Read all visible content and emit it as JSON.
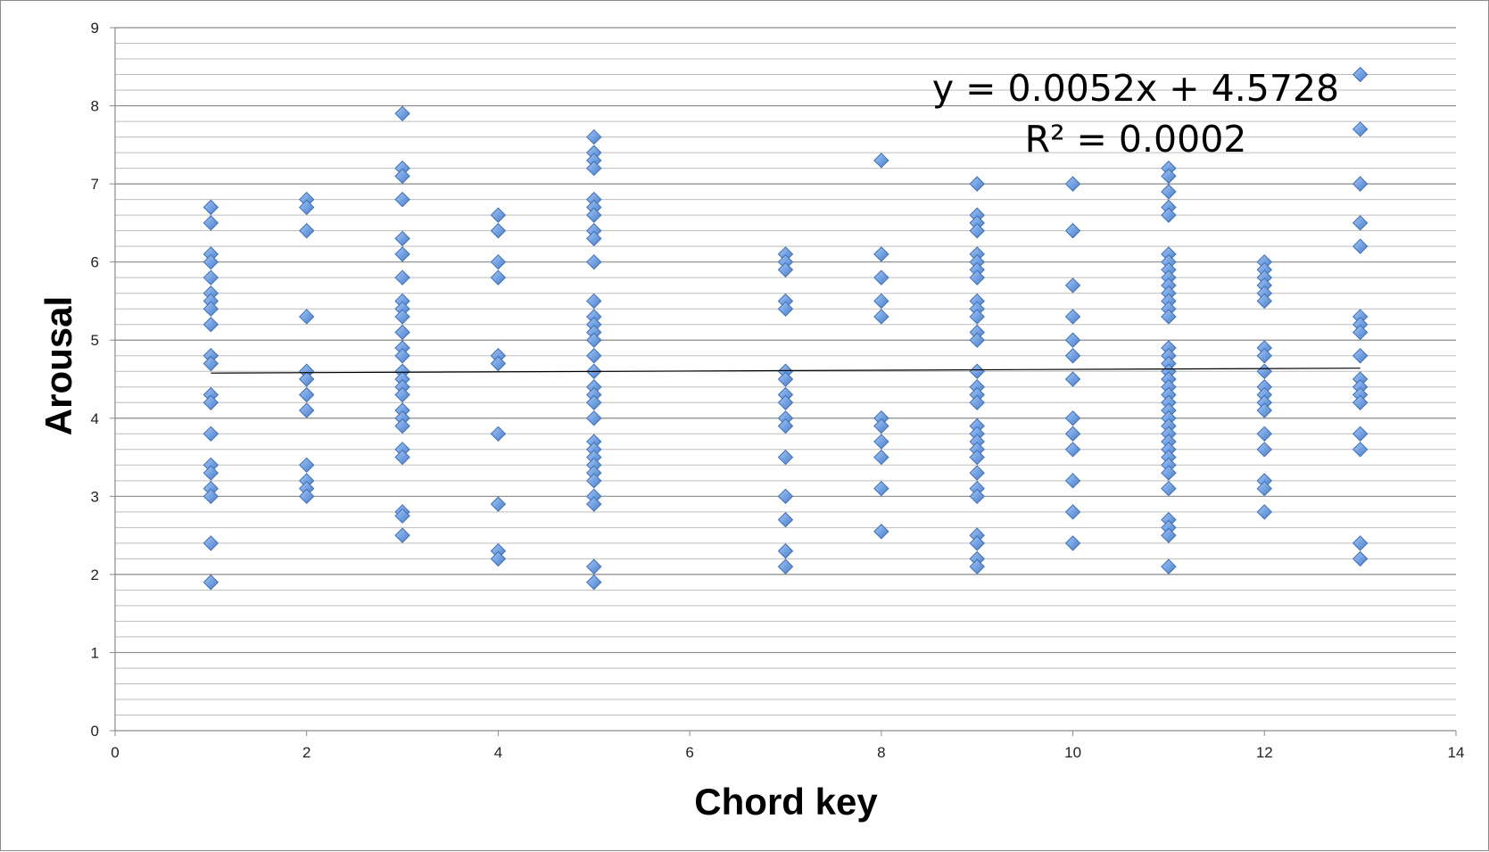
{
  "chart_data": {
    "type": "scatter",
    "title": "",
    "xlabel": "Chord key",
    "ylabel": "Arousal",
    "xlim": [
      0,
      14
    ],
    "ylim": [
      0,
      9
    ],
    "x_ticks": [
      "0",
      "2",
      "4",
      "6",
      "8",
      "10",
      "12",
      "14"
    ],
    "y_ticks": [
      "0",
      "1",
      "2",
      "3",
      "4",
      "5",
      "6",
      "7",
      "8",
      "9"
    ],
    "grid": "horizontal",
    "marker": "diamond",
    "marker_color": "#6f9ee0",
    "trendline": {
      "type": "linear",
      "slope": 0.0052,
      "intercept": 4.5728,
      "x_range": [
        1,
        13
      ],
      "equation_label": "y = 0.0052x + 4.5728",
      "r2_label": "R² = 0.0002"
    },
    "points": [
      [
        1,
        6.7
      ],
      [
        1,
        6.5
      ],
      [
        1,
        6.1
      ],
      [
        1,
        6.0
      ],
      [
        1,
        5.8
      ],
      [
        1,
        5.6
      ],
      [
        1,
        5.5
      ],
      [
        1,
        5.4
      ],
      [
        1,
        5.2
      ],
      [
        1,
        4.8
      ],
      [
        1,
        4.7
      ],
      [
        1,
        4.3
      ],
      [
        1,
        4.2
      ],
      [
        1,
        3.8
      ],
      [
        1,
        3.4
      ],
      [
        1,
        3.3
      ],
      [
        1,
        3.1
      ],
      [
        1,
        3.0
      ],
      [
        1,
        2.4
      ],
      [
        1,
        1.9
      ],
      [
        2,
        6.8
      ],
      [
        2,
        6.7
      ],
      [
        2,
        6.4
      ],
      [
        2,
        5.3
      ],
      [
        2,
        4.6
      ],
      [
        2,
        4.5
      ],
      [
        2,
        4.3
      ],
      [
        2,
        4.1
      ],
      [
        2,
        3.4
      ],
      [
        2,
        3.2
      ],
      [
        2,
        3.1
      ],
      [
        2,
        3.0
      ],
      [
        3,
        7.9
      ],
      [
        3,
        7.2
      ],
      [
        3,
        7.1
      ],
      [
        3,
        6.8
      ],
      [
        3,
        6.3
      ],
      [
        3,
        6.1
      ],
      [
        3,
        5.8
      ],
      [
        3,
        5.5
      ],
      [
        3,
        5.4
      ],
      [
        3,
        5.3
      ],
      [
        3,
        5.1
      ],
      [
        3,
        4.9
      ],
      [
        3,
        4.8
      ],
      [
        3,
        4.6
      ],
      [
        3,
        4.5
      ],
      [
        3,
        4.4
      ],
      [
        3,
        4.3
      ],
      [
        3,
        4.1
      ],
      [
        3,
        4.0
      ],
      [
        3,
        3.9
      ],
      [
        3,
        3.6
      ],
      [
        3,
        3.5
      ],
      [
        3,
        2.8
      ],
      [
        3,
        2.75
      ],
      [
        3,
        2.5
      ],
      [
        4,
        6.6
      ],
      [
        4,
        6.4
      ],
      [
        4,
        6.0
      ],
      [
        4,
        5.8
      ],
      [
        4,
        4.8
      ],
      [
        4,
        4.7
      ],
      [
        4,
        3.8
      ],
      [
        4,
        2.9
      ],
      [
        4,
        2.3
      ],
      [
        4,
        2.2
      ],
      [
        5,
        7.6
      ],
      [
        5,
        7.4
      ],
      [
        5,
        7.3
      ],
      [
        5,
        7.2
      ],
      [
        5,
        6.8
      ],
      [
        5,
        6.7
      ],
      [
        5,
        6.6
      ],
      [
        5,
        6.4
      ],
      [
        5,
        6.3
      ],
      [
        5,
        6.0
      ],
      [
        5,
        5.5
      ],
      [
        5,
        5.3
      ],
      [
        5,
        5.2
      ],
      [
        5,
        5.1
      ],
      [
        5,
        5.0
      ],
      [
        5,
        4.8
      ],
      [
        5,
        4.6
      ],
      [
        5,
        4.4
      ],
      [
        5,
        4.3
      ],
      [
        5,
        4.2
      ],
      [
        5,
        4.0
      ],
      [
        5,
        3.7
      ],
      [
        5,
        3.6
      ],
      [
        5,
        3.5
      ],
      [
        5,
        3.4
      ],
      [
        5,
        3.3
      ],
      [
        5,
        3.2
      ],
      [
        5,
        3.0
      ],
      [
        5,
        2.9
      ],
      [
        5,
        2.1
      ],
      [
        5,
        1.9
      ],
      [
        7,
        6.1
      ],
      [
        7,
        6.0
      ],
      [
        7,
        5.9
      ],
      [
        7,
        5.5
      ],
      [
        7,
        5.4
      ],
      [
        7,
        4.6
      ],
      [
        7,
        4.5
      ],
      [
        7,
        4.3
      ],
      [
        7,
        4.2
      ],
      [
        7,
        4.0
      ],
      [
        7,
        3.9
      ],
      [
        7,
        3.5
      ],
      [
        7,
        3.0
      ],
      [
        7,
        2.7
      ],
      [
        7,
        2.3
      ],
      [
        7,
        2.1
      ],
      [
        8,
        7.3
      ],
      [
        8,
        6.1
      ],
      [
        8,
        5.8
      ],
      [
        8,
        5.5
      ],
      [
        8,
        5.3
      ],
      [
        8,
        4.0
      ],
      [
        8,
        3.9
      ],
      [
        8,
        3.7
      ],
      [
        8,
        3.5
      ],
      [
        8,
        3.1
      ],
      [
        8,
        2.55
      ],
      [
        9,
        7.0
      ],
      [
        9,
        6.6
      ],
      [
        9,
        6.5
      ],
      [
        9,
        6.4
      ],
      [
        9,
        6.1
      ],
      [
        9,
        6.0
      ],
      [
        9,
        5.9
      ],
      [
        9,
        5.8
      ],
      [
        9,
        5.5
      ],
      [
        9,
        5.4
      ],
      [
        9,
        5.3
      ],
      [
        9,
        5.1
      ],
      [
        9,
        5.0
      ],
      [
        9,
        4.6
      ],
      [
        9,
        4.4
      ],
      [
        9,
        4.3
      ],
      [
        9,
        4.2
      ],
      [
        9,
        3.9
      ],
      [
        9,
        3.8
      ],
      [
        9,
        3.7
      ],
      [
        9,
        3.6
      ],
      [
        9,
        3.5
      ],
      [
        9,
        3.3
      ],
      [
        9,
        3.1
      ],
      [
        9,
        3.0
      ],
      [
        9,
        2.5
      ],
      [
        9,
        2.4
      ],
      [
        9,
        2.2
      ],
      [
        9,
        2.1
      ],
      [
        10,
        7.0
      ],
      [
        10,
        6.4
      ],
      [
        10,
        5.7
      ],
      [
        10,
        5.3
      ],
      [
        10,
        5.0
      ],
      [
        10,
        4.8
      ],
      [
        10,
        4.5
      ],
      [
        10,
        4.0
      ],
      [
        10,
        3.8
      ],
      [
        10,
        3.6
      ],
      [
        10,
        3.2
      ],
      [
        10,
        2.8
      ],
      [
        10,
        2.4
      ],
      [
        11,
        7.2
      ],
      [
        11,
        7.1
      ],
      [
        11,
        6.9
      ],
      [
        11,
        6.7
      ],
      [
        11,
        6.6
      ],
      [
        11,
        6.1
      ],
      [
        11,
        6.0
      ],
      [
        11,
        5.9
      ],
      [
        11,
        5.8
      ],
      [
        11,
        5.7
      ],
      [
        11,
        5.6
      ],
      [
        11,
        5.5
      ],
      [
        11,
        5.4
      ],
      [
        11,
        5.3
      ],
      [
        11,
        4.9
      ],
      [
        11,
        4.8
      ],
      [
        11,
        4.7
      ],
      [
        11,
        4.6
      ],
      [
        11,
        4.5
      ],
      [
        11,
        4.4
      ],
      [
        11,
        4.3
      ],
      [
        11,
        4.2
      ],
      [
        11,
        4.1
      ],
      [
        11,
        4.0
      ],
      [
        11,
        3.9
      ],
      [
        11,
        3.8
      ],
      [
        11,
        3.7
      ],
      [
        11,
        3.6
      ],
      [
        11,
        3.5
      ],
      [
        11,
        3.4
      ],
      [
        11,
        3.3
      ],
      [
        11,
        3.1
      ],
      [
        11,
        2.7
      ],
      [
        11,
        2.6
      ],
      [
        11,
        2.5
      ],
      [
        11,
        2.1
      ],
      [
        12,
        6.0
      ],
      [
        12,
        5.9
      ],
      [
        12,
        5.8
      ],
      [
        12,
        5.7
      ],
      [
        12,
        5.6
      ],
      [
        12,
        5.5
      ],
      [
        12,
        4.9
      ],
      [
        12,
        4.8
      ],
      [
        12,
        4.6
      ],
      [
        12,
        4.4
      ],
      [
        12,
        4.3
      ],
      [
        12,
        4.2
      ],
      [
        12,
        4.1
      ],
      [
        12,
        3.8
      ],
      [
        12,
        3.6
      ],
      [
        12,
        3.2
      ],
      [
        12,
        3.1
      ],
      [
        12,
        2.8
      ],
      [
        13,
        8.4
      ],
      [
        13,
        7.7
      ],
      [
        13,
        7.0
      ],
      [
        13,
        6.5
      ],
      [
        13,
        6.2
      ],
      [
        13,
        5.3
      ],
      [
        13,
        5.2
      ],
      [
        13,
        5.1
      ],
      [
        13,
        4.8
      ],
      [
        13,
        4.5
      ],
      [
        13,
        4.4
      ],
      [
        13,
        4.3
      ],
      [
        13,
        4.2
      ],
      [
        13,
        3.8
      ],
      [
        13,
        3.6
      ],
      [
        13,
        2.4
      ],
      [
        13,
        2.2
      ]
    ]
  }
}
